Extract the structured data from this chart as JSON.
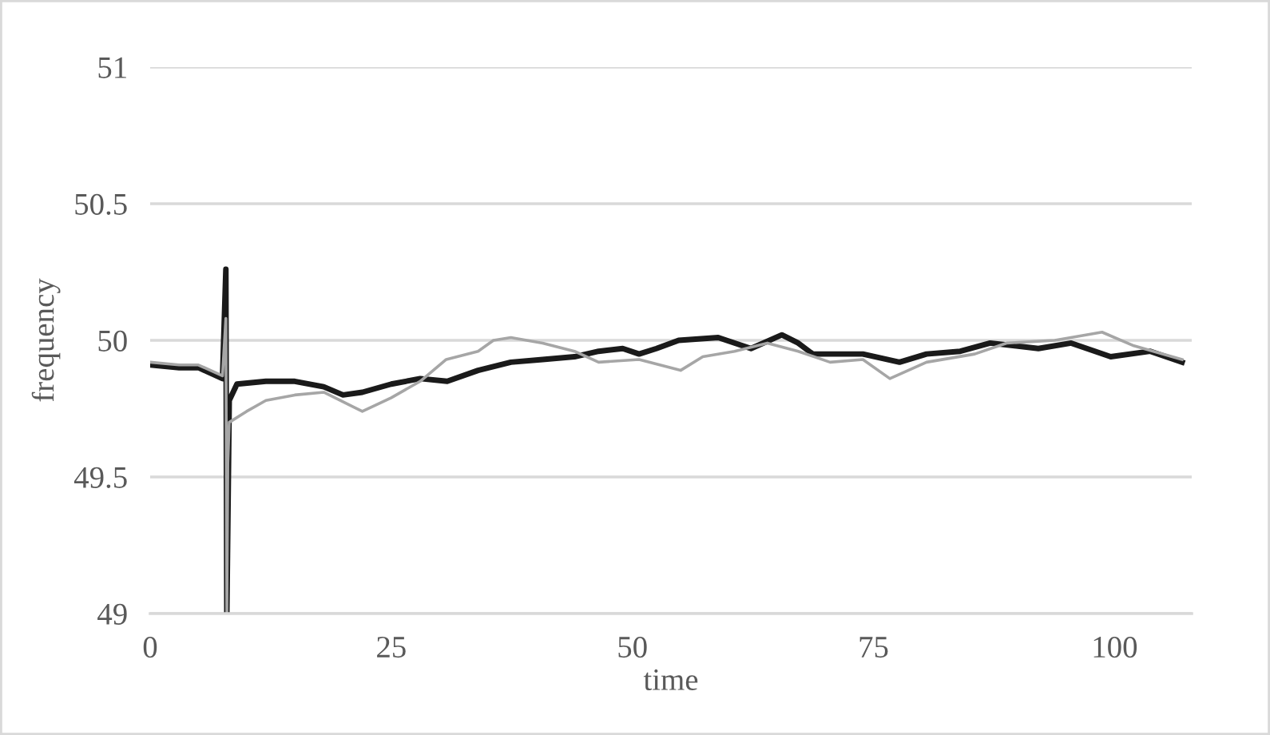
{
  "chart_data": {
    "type": "line",
    "xlabel": "time",
    "ylabel": "frequency",
    "xlim": [
      0,
      108
    ],
    "xticks": [
      0,
      25,
      50,
      75,
      100
    ],
    "ylim": [
      49,
      51
    ],
    "yticks": [
      49,
      49.5,
      50,
      50.5,
      51
    ],
    "grid": "y",
    "legend": false,
    "line_style": "solid",
    "series": [
      {
        "color": "#1a1a1a",
        "x": [
          0,
          3,
          5,
          7.5,
          7.85,
          7.95,
          8.2,
          9,
          12,
          15,
          18,
          20,
          22,
          25,
          28,
          30.8,
          34,
          37.4,
          40.7,
          44,
          46.5,
          49,
          50.7,
          52.5,
          54.8,
          58.9,
          62.3,
          65.5,
          67.2,
          68.7,
          70.5,
          73.9,
          77.7,
          80.5,
          84,
          87.1,
          92.1,
          95.5,
          99.6,
          103.7,
          107
        ],
        "values": [
          49.91,
          49.9,
          49.9,
          49.86,
          50.26,
          49.0,
          49.78,
          49.84,
          49.85,
          49.85,
          49.83,
          49.8,
          49.81,
          49.84,
          49.86,
          49.85,
          49.89,
          49.92,
          49.93,
          49.94,
          49.96,
          49.97,
          49.95,
          49.97,
          50.0,
          50.01,
          49.97,
          50.02,
          49.99,
          49.95,
          49.95,
          49.95,
          49.92,
          49.95,
          49.96,
          49.99,
          49.97,
          49.99,
          49.94,
          49.96,
          49.92
        ]
      },
      {
        "color": "#a6a6a6",
        "x": [
          0,
          3,
          5,
          7.5,
          7.85,
          7.95,
          8.05,
          8.2,
          10,
          12,
          15,
          18,
          22,
          25,
          28,
          30.7,
          34,
          35.6,
          37.4,
          40.7,
          44,
          46.5,
          50.7,
          55,
          57.3,
          60.6,
          64,
          67.2,
          70.5,
          73.9,
          76.7,
          80.5,
          85.5,
          88.8,
          93.8,
          98.7,
          102,
          107
        ],
        "values": [
          49.92,
          49.91,
          49.91,
          49.87,
          50.08,
          49.0,
          49.55,
          49.7,
          49.74,
          49.78,
          49.8,
          49.81,
          49.74,
          49.79,
          49.85,
          49.93,
          49.96,
          50.0,
          50.01,
          49.99,
          49.96,
          49.92,
          49.93,
          49.89,
          49.94,
          49.96,
          49.99,
          49.96,
          49.92,
          49.93,
          49.86,
          49.92,
          49.95,
          49.99,
          50.0,
          50.03,
          49.98,
          49.93
        ]
      }
    ]
  }
}
